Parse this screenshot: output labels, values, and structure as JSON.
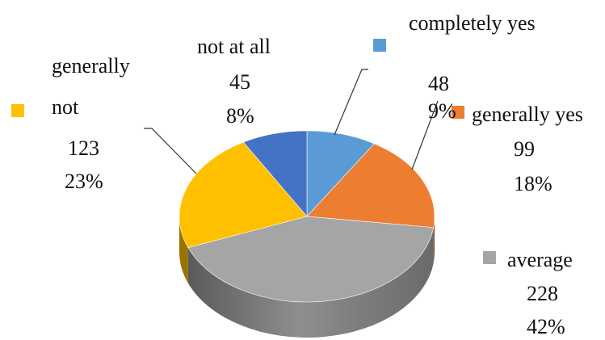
{
  "chart_data": {
    "type": "pie",
    "style": "3d",
    "title": "",
    "categories": [
      "completely yes",
      "generally yes",
      "average",
      "generally not",
      "not at all"
    ],
    "values": [
      48,
      99,
      228,
      123,
      45
    ],
    "percent_labels": [
      "9%",
      "18%",
      "42%",
      "23%",
      "8%"
    ],
    "value_labels": [
      "48",
      "99",
      "228",
      "123",
      "45"
    ],
    "label_lines": {
      "generally_not": [
        "generally",
        "not"
      ]
    },
    "colors": [
      "#5b9bd5",
      "#ed7d31",
      "#a5a5a5",
      "#ffc000",
      "#4472c4"
    ],
    "legend": "labels placed beside each slice with a colored marker"
  }
}
